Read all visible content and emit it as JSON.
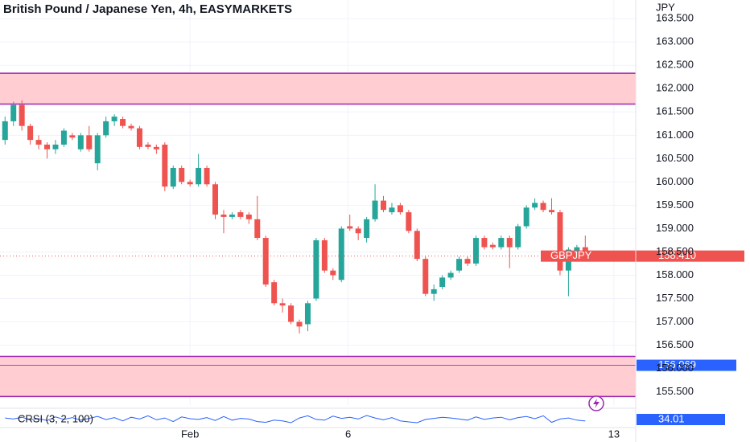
{
  "chart_data": {
    "type": "candlestick",
    "title": "British Pound / Japanese Yen, 4h, EASYMARKETS",
    "currency": "JPY",
    "symbol": "GBPJPY",
    "up_color": "#26a69a",
    "down_color": "#ef5350",
    "open": [
      160.9,
      161.3,
      161.65,
      161.2,
      160.9,
      160.8,
      160.7,
      160.8,
      161.0,
      160.7,
      161.0,
      160.4,
      161.0,
      161.3,
      161.35,
      161.2,
      161.15,
      160.8,
      160.75,
      160.8,
      159.9,
      160.3,
      160.0,
      159.95,
      160.3,
      159.95,
      159.3,
      159.25,
      159.35,
      159.3,
      159.2,
      158.8,
      157.85,
      157.4,
      157.35,
      157.0,
      156.95,
      157.5,
      158.75,
      158.1,
      157.9,
      159.05,
      159.0,
      158.8,
      159.2,
      159.6,
      159.35,
      159.5,
      159.35,
      158.95,
      158.35,
      157.6,
      157.75,
      157.95,
      158.1,
      158.35,
      158.25,
      158.8,
      158.65,
      158.6,
      158.8,
      158.6,
      159.05,
      159.45,
      159.55,
      159.4,
      159.35,
      158.1,
      158.5,
      158.6
    ],
    "high": [
      161.4,
      161.72,
      161.75,
      161.25,
      161.0,
      160.85,
      160.9,
      161.15,
      161.05,
      161.05,
      161.2,
      161.05,
      161.4,
      161.45,
      161.4,
      161.25,
      161.2,
      160.85,
      160.8,
      160.85,
      160.35,
      160.35,
      160.05,
      160.6,
      160.35,
      160.0,
      159.4,
      159.35,
      159.4,
      159.35,
      159.7,
      158.85,
      157.9,
      157.5,
      157.4,
      157.05,
      157.45,
      158.8,
      158.8,
      158.15,
      159.05,
      159.3,
      159.05,
      159.25,
      159.95,
      159.7,
      159.55,
      159.55,
      159.4,
      159.0,
      158.4,
      157.8,
      158.0,
      158.1,
      158.4,
      158.4,
      158.85,
      158.85,
      158.7,
      158.85,
      158.85,
      159.1,
      159.5,
      159.65,
      159.6,
      159.65,
      159.4,
      158.6,
      158.65,
      158.85
    ],
    "low": [
      160.8,
      161.2,
      161.1,
      160.8,
      160.7,
      160.5,
      160.6,
      160.75,
      160.9,
      160.65,
      160.65,
      160.25,
      160.95,
      161.2,
      161.15,
      161.1,
      160.7,
      160.7,
      160.6,
      159.8,
      159.85,
      159.95,
      159.9,
      159.9,
      159.9,
      159.2,
      158.9,
      159.2,
      159.2,
      159.1,
      158.75,
      157.75,
      157.35,
      157.2,
      156.95,
      156.75,
      156.8,
      157.45,
      158.05,
      157.9,
      157.85,
      158.95,
      158.75,
      158.7,
      159.15,
      159.35,
      159.3,
      159.3,
      158.9,
      158.3,
      157.55,
      157.45,
      157.7,
      157.9,
      158.05,
      158.2,
      158.2,
      158.55,
      158.55,
      158.55,
      158.15,
      158.55,
      159.0,
      159.4,
      159.35,
      159.3,
      158.0,
      157.55,
      158.45,
      158.35
    ],
    "close": [
      161.3,
      161.65,
      161.2,
      160.9,
      160.8,
      160.7,
      160.8,
      161.1,
      160.95,
      161.0,
      160.7,
      161.0,
      161.3,
      161.4,
      161.2,
      161.15,
      160.75,
      160.75,
      160.7,
      159.9,
      160.3,
      160.0,
      159.95,
      160.3,
      159.95,
      159.3,
      159.25,
      159.3,
      159.25,
      159.2,
      158.8,
      157.8,
      157.4,
      157.35,
      157.0,
      156.9,
      157.4,
      158.75,
      158.1,
      158.0,
      159.0,
      159.0,
      158.9,
      159.2,
      159.6,
      159.4,
      159.45,
      159.35,
      158.95,
      158.35,
      157.6,
      157.7,
      157.95,
      158.05,
      158.35,
      158.25,
      158.8,
      158.6,
      158.6,
      158.8,
      158.6,
      159.05,
      159.45,
      159.55,
      159.4,
      159.35,
      158.1,
      158.55,
      158.6,
      158.41
    ],
    "xlim": [
      -0.6,
      75
    ],
    "xticks": [
      {
        "value": 22,
        "label": "Feb"
      },
      {
        "value": 40.8,
        "label": "6"
      },
      {
        "value": 72.4,
        "label": "13"
      }
    ],
    "ylim": [
      155.2,
      163.9
    ],
    "yticks": [
      {
        "value": 155.5,
        "label": "155.500"
      },
      {
        "value": 156,
        "label": "156.000"
      },
      {
        "value": 156.5,
        "label": "156.500"
      },
      {
        "value": 157,
        "label": "157.000"
      },
      {
        "value": 157.5,
        "label": "157.500"
      },
      {
        "value": 158,
        "label": "158.000"
      },
      {
        "value": 158.5,
        "label": "158.500"
      },
      {
        "value": 159,
        "label": "159.000"
      },
      {
        "value": 159.5,
        "label": "159.500"
      },
      {
        "value": 160,
        "label": "160.000"
      },
      {
        "value": 160.5,
        "label": "160.500"
      },
      {
        "value": 161,
        "label": "161.000"
      },
      {
        "value": 161.5,
        "label": "161.500"
      },
      {
        "value": 162,
        "label": "162.000"
      },
      {
        "value": 162.5,
        "label": "162.500"
      },
      {
        "value": 163,
        "label": "163.000"
      },
      {
        "value": 163.5,
        "label": "163.500"
      }
    ],
    "grid": true,
    "zones": [
      {
        "top": 162.33,
        "bottom": 161.67,
        "color": "#ffcdd2",
        "border": "#9c27b0"
      },
      {
        "top": 156.26,
        "bottom": 155.4,
        "color": "#ffcdd2",
        "border": "#9c27b0"
      }
    ],
    "level": 156.069,
    "level_color": "#2962ff",
    "last_price": {
      "value": 158.41,
      "label": "158.410"
    },
    "indicator": {
      "name": "CRSI (3, 2, 100)",
      "color": "#2962ff",
      "ylim": [
        0,
        100
      ],
      "values": [
        55,
        48,
        60,
        42,
        50,
        38,
        62,
        45,
        58,
        40,
        52,
        66,
        44,
        57,
        35,
        60,
        48,
        70,
        42,
        55,
        30,
        62,
        50,
        45,
        58,
        38,
        65,
        40,
        52,
        48,
        30,
        25,
        40,
        35,
        22,
        55,
        70,
        45,
        40,
        68,
        52,
        60,
        48,
        72,
        55,
        42,
        58,
        35,
        28,
        22,
        45,
        52,
        60,
        55,
        48,
        40,
        62,
        45,
        55,
        60,
        42,
        58,
        65,
        50,
        70,
        25,
        48,
        55,
        40,
        34.01
      ]
    }
  }
}
